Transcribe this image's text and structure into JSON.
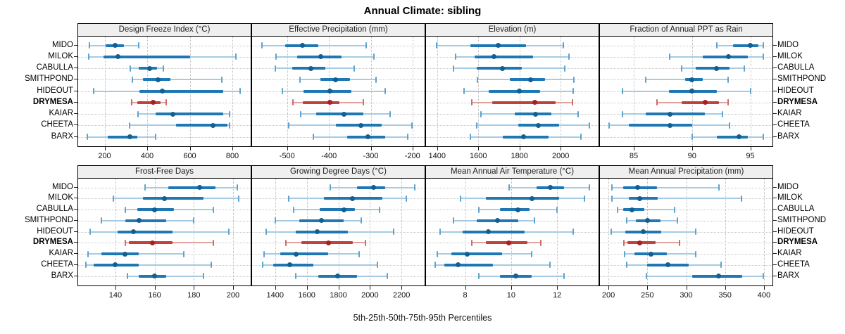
{
  "title": "Annual Climate: sibling",
  "caption": "5th-25th-50th-75th-95th Percentiles",
  "sites": [
    "MIDO",
    "MILOK",
    "CABULLA",
    "SMITHPOND",
    "HIDEOUT",
    "DRYMESA",
    "KAIAR",
    "CHEETA",
    "BARX"
  ],
  "highlight_site": "DRYMESA",
  "colors": {
    "normal": {
      "light": "#a6cbe3",
      "cap": "#5fa4cd",
      "thick": "#1f77b4",
      "dot": "#155f8f"
    },
    "highlight": {
      "light": "#dfa3a0",
      "cap": "#cd6a66",
      "thick": "#c0413d",
      "dot": "#a81f24"
    },
    "strip_bg": "#efefef",
    "grid": "#c6c6c6",
    "border": "#000000"
  },
  "chart_data": [
    {
      "type": "interval-dotplot",
      "row": 0,
      "col": 0,
      "title": "Design Freeze Index (°C)",
      "domain": [
        76,
        886
      ],
      "ticks": [
        200,
        400,
        600,
        800
      ],
      "tick_labels": [
        "200",
        "400",
        "600",
        "800"
      ],
      "percentile_labels": [
        "p5",
        "p25",
        "p50",
        "p75",
        "p95"
      ],
      "values": {
        "MIDO": [
          129,
          205,
          248,
          290,
          361
        ],
        "MILOK": [
          124,
          195,
          263,
          600,
          815
        ],
        "CABULLA": [
          320,
          360,
          411,
          448,
          476
        ],
        "SMITHPOND": [
          330,
          381,
          451,
          508,
          749
        ],
        "HIDEOUT": [
          150,
          365,
          470,
          758,
          835
        ],
        "DRYMESA": [
          326,
          355,
          428,
          464,
          490
        ],
        "KAIAR": [
          356,
          438,
          519,
          758,
          788
        ],
        "CHEETA": [
          317,
          536,
          710,
          777,
          786
        ],
        "BARX": [
          120,
          214,
          320,
          355,
          440
        ]
      }
    },
    {
      "type": "interval-dotplot",
      "row": 0,
      "col": 1,
      "title": "Effective Precipitation (mm)",
      "domain": [
        -584,
        -171
      ],
      "ticks": [
        -500,
        -400,
        -300,
        -200
      ],
      "tick_labels": [
        "-500",
        "-400",
        "-300",
        "-200"
      ],
      "values": {
        "MIDO": [
          -560,
          -505,
          -464,
          -425,
          -311
        ],
        "MILOK": [
          -526,
          -476,
          -419,
          -370,
          -292
        ],
        "CABULLA": [
          -529,
          -488,
          -444,
          -408,
          -339
        ],
        "SMITHPOND": [
          -470,
          -421,
          -384,
          -350,
          -288
        ],
        "HIDEOUT": [
          -511,
          -461,
          -397,
          -346,
          -266
        ],
        "DRYMESA": [
          -486,
          -463,
          -397,
          -375,
          -318
        ],
        "KAIAR": [
          -468,
          -430,
          -364,
          -318,
          -254
        ],
        "CHEETA": [
          -496,
          -384,
          -324,
          -273,
          -201
        ],
        "BARX": [
          -437,
          -356,
          -306,
          -266,
          -212
        ]
      }
    },
    {
      "type": "interval-dotplot",
      "row": 0,
      "col": 2,
      "title": "Elevation (m)",
      "domain": [
        1346,
        2184
      ],
      "ticks": [
        1400,
        1600,
        1800,
        2000
      ],
      "tick_labels": [
        "1400",
        "1600",
        "1800",
        "2000"
      ],
      "values": {
        "MIDO": [
          1398,
          1560,
          1698,
          1831,
          2012
        ],
        "MILOK": [
          1491,
          1581,
          1675,
          1866,
          2039
        ],
        "CABULLA": [
          1480,
          1592,
          1718,
          1810,
          2019
        ],
        "SMITHPOND": [
          1594,
          1752,
          1854,
          1923,
          2065
        ],
        "HIDEOUT": [
          1532,
          1651,
          1800,
          1900,
          2059
        ],
        "DRYMESA": [
          1568,
          1668,
          1873,
          1975,
          2058
        ],
        "KAIAR": [
          1611,
          1777,
          1877,
          1956,
          2085
        ],
        "CHEETA": [
          1592,
          1794,
          1893,
          1993,
          2141
        ],
        "BARX": [
          1560,
          1718,
          1821,
          1940,
          2098
        ]
      }
    },
    {
      "type": "interval-dotplot",
      "row": 0,
      "col": 3,
      "title": "Fraction of Annual PPT as Rain",
      "domain": [
        82.1,
        96.9
      ],
      "ticks": [
        85,
        90,
        95
      ],
      "tick_labels": [
        "85",
        "90",
        "95"
      ],
      "values": {
        "MIDO": [
          92.1,
          93.5,
          95.0,
          95.7,
          96.1
        ],
        "MILOK": [
          88.1,
          90.9,
          93.1,
          94.8,
          96.1
        ],
        "CABULLA": [
          89.1,
          90.3,
          92.1,
          93.2,
          94.5
        ],
        "SMITHPOND": [
          86.0,
          89.4,
          90.0,
          90.9,
          93.1
        ],
        "HIDEOUT": [
          84.0,
          88.0,
          90.0,
          92.1,
          95.0
        ],
        "DRYMESA": [
          87.0,
          89.1,
          91.1,
          92.3,
          93.1
        ],
        "KAIAR": [
          84.0,
          86.0,
          88.1,
          91.1,
          92.6
        ],
        "CHEETA": [
          82.9,
          84.6,
          88.1,
          90.0,
          93.2
        ],
        "BARX": [
          90.0,
          92.1,
          94.0,
          94.8,
          96.1
        ]
      }
    },
    {
      "type": "interval-dotplot",
      "row": 1,
      "col": 0,
      "title": "Frost-Free Days",
      "domain": [
        121,
        209
      ],
      "ticks": [
        140,
        160,
        180,
        200
      ],
      "tick_labels": [
        "140",
        "160",
        "180",
        "200"
      ],
      "values": {
        "MIDO": [
          155,
          167,
          183,
          191,
          202
        ],
        "MILOK": [
          139,
          154,
          165,
          185,
          203
        ],
        "CABULLA": [
          145,
          151,
          160,
          170,
          190
        ],
        "SMITHPOND": [
          133,
          145,
          152,
          166,
          180
        ],
        "HIDEOUT": [
          127,
          141,
          149,
          169,
          198
        ],
        "DRYMESA": [
          145,
          147,
          159,
          169,
          190
        ],
        "KAIAR": [
          126,
          133,
          145,
          152,
          175
        ],
        "CHEETA": [
          125,
          129,
          140,
          152,
          189
        ],
        "BARX": [
          146,
          152,
          160,
          166,
          185
        ]
      }
    },
    {
      "type": "interval-dotplot",
      "row": 1,
      "col": 1,
      "title": "Growing Degree Days (°C)",
      "domain": [
        1254,
        2346
      ],
      "ticks": [
        1400,
        1600,
        1800,
        2000,
        2200
      ],
      "tick_labels": [
        "1400",
        "1600",
        "1800",
        "2000",
        "2200"
      ],
      "values": {
        "MIDO": [
          1750,
          1920,
          2022,
          2096,
          2285
        ],
        "MILOK": [
          1486,
          1708,
          1891,
          2077,
          2228
        ],
        "CABULLA": [
          1515,
          1681,
          1834,
          1907,
          2059
        ],
        "SMITHPOND": [
          1403,
          1551,
          1693,
          1832,
          1945
        ],
        "HIDEOUT": [
          1344,
          1530,
          1664,
          1859,
          2148
        ],
        "DRYMESA": [
          1467,
          1566,
          1738,
          1891,
          1970
        ],
        "KAIAR": [
          1329,
          1430,
          1533,
          1733,
          1930
        ],
        "CHEETA": [
          1319,
          1388,
          1492,
          1640,
          2049
        ],
        "BARX": [
          1530,
          1674,
          1797,
          1919,
          2111
        ]
      }
    },
    {
      "type": "interval-dotplot",
      "row": 1,
      "col": 2,
      "title": "Mean Annual Air Temperature (°C)",
      "domain": [
        6.3,
        13.8
      ],
      "ticks": [
        8,
        10,
        12
      ],
      "tick_labels": [
        "8",
        "10",
        "12"
      ],
      "values": {
        "MIDO": [
          9.9,
          11.1,
          11.7,
          12.3,
          13.4
        ],
        "MILOK": [
          7.8,
          8.9,
          10.9,
          12.1,
          13.2
        ],
        "CABULLA": [
          8.6,
          9.5,
          10.3,
          10.8,
          12.0
        ],
        "SMITHPOND": [
          7.5,
          8.5,
          9.4,
          10.3,
          11.0
        ],
        "HIDEOUT": [
          6.9,
          7.9,
          9.0,
          10.6,
          12.7
        ],
        "DRYMESA": [
          8.3,
          8.9,
          9.9,
          10.7,
          11.3
        ],
        "KAIAR": [
          6.8,
          7.4,
          8.1,
          9.6,
          10.9
        ],
        "CHEETA": [
          6.7,
          7.1,
          7.7,
          9.2,
          11.7
        ],
        "BARX": [
          8.6,
          9.5,
          10.2,
          10.9,
          12.3
        ]
      }
    },
    {
      "type": "interval-dotplot",
      "row": 1,
      "col": 3,
      "title": "Mean Annual Precipitation (mm)",
      "domain": [
        189,
        411
      ],
      "ticks": [
        200,
        250,
        300,
        350,
        400
      ],
      "tick_labels": [
        "200",
        "250",
        "300",
        "350",
        "400"
      ],
      "values": {
        "MIDO": [
          204,
          219,
          237,
          262,
          342
        ],
        "MILOK": [
          204,
          226,
          240,
          263,
          371
        ],
        "CABULLA": [
          212,
          219,
          230,
          246,
          285
        ],
        "SMITHPOND": [
          223,
          235,
          250,
          267,
          289
        ],
        "HIDEOUT": [
          203,
          222,
          245,
          268,
          312
        ],
        "DRYMESA": [
          220,
          224,
          240,
          261,
          291
        ],
        "KAIAR": [
          221,
          233,
          255,
          275,
          312
        ],
        "CHEETA": [
          223,
          250,
          276,
          303,
          345
        ],
        "BARX": [
          249,
          308,
          342,
          372,
          399
        ]
      }
    }
  ]
}
